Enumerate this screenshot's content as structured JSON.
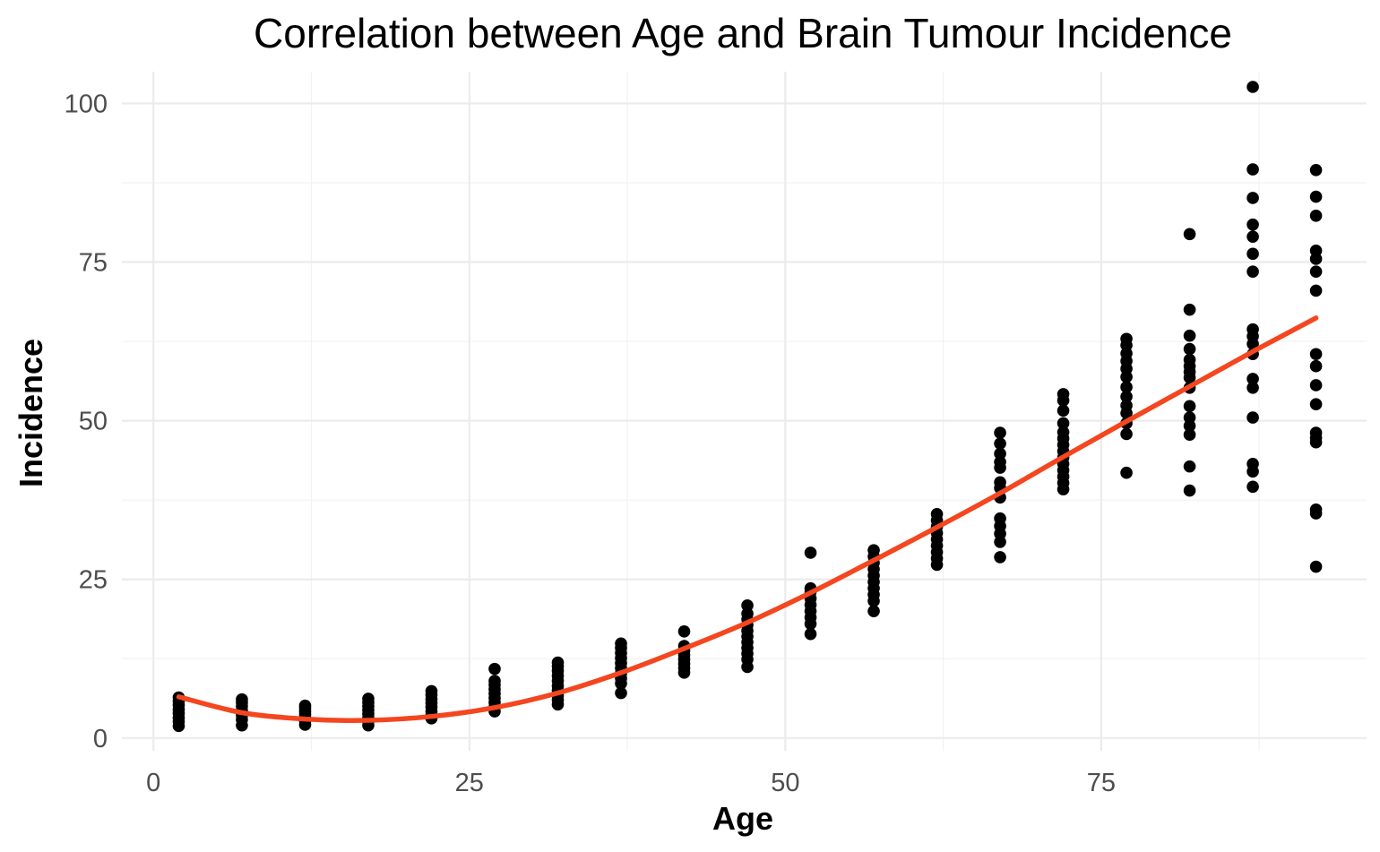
{
  "chart_data": {
    "type": "scatter",
    "title": "Correlation between Age and Brain Tumour Incidence",
    "xlabel": "Age",
    "ylabel": "Incidence",
    "xlim": [
      -2.5,
      96
    ],
    "ylim": [
      -2,
      105
    ],
    "x_ticks": [
      0,
      25,
      50,
      75
    ],
    "y_ticks": [
      0,
      25,
      50,
      75,
      100
    ],
    "grid": true,
    "legend": "none",
    "colors": {
      "points": "#000000",
      "trend": "#f4461f"
    },
    "points": [
      {
        "x": 2,
        "y": [
          1.9,
          2.6,
          3.2,
          3.9,
          4.5,
          5.2,
          5.8,
          6.4
        ]
      },
      {
        "x": 7,
        "y": [
          2.0,
          2.9,
          3.6,
          4.3,
          5.0,
          5.6,
          6.1
        ]
      },
      {
        "x": 12,
        "y": [
          2.1,
          2.7,
          3.2,
          3.7,
          4.2,
          4.7,
          5.1
        ]
      },
      {
        "x": 17,
        "y": [
          2.0,
          2.6,
          3.2,
          3.8,
          4.4,
          5.0,
          5.6,
          6.2
        ]
      },
      {
        "x": 22,
        "y": [
          3.1,
          3.6,
          4.2,
          4.9,
          5.5,
          6.1,
          6.8,
          7.4
        ]
      },
      {
        "x": 27,
        "y": [
          4.2,
          4.9,
          5.6,
          6.3,
          7.0,
          7.7,
          8.4,
          9.0,
          10.9
        ]
      },
      {
        "x": 32,
        "y": [
          5.3,
          6.0,
          6.7,
          7.5,
          8.2,
          9.0,
          9.8,
          10.6,
          11.3,
          11.9
        ]
      },
      {
        "x": 37,
        "y": [
          7.1,
          8.6,
          9.4,
          10.2,
          11.0,
          11.8,
          12.6,
          13.4,
          14.2,
          14.9
        ]
      },
      {
        "x": 42,
        "y": [
          10.3,
          11.0,
          11.7,
          12.4,
          13.1,
          13.8,
          14.5,
          16.8
        ]
      },
      {
        "x": 47,
        "y": [
          11.2,
          12.4,
          13.3,
          14.2,
          15.1,
          16.0,
          16.9,
          17.8,
          18.7,
          19.6,
          20.9
        ]
      },
      {
        "x": 52,
        "y": [
          16.4,
          18.0,
          19.0,
          20.0,
          21.0,
          22.0,
          23.0,
          23.6,
          29.2
        ]
      },
      {
        "x": 57,
        "y": [
          20.0,
          21.6,
          22.6,
          23.6,
          24.6,
          25.6,
          26.6,
          27.6,
          28.6,
          29.6
        ]
      },
      {
        "x": 62,
        "y": [
          27.3,
          28.3,
          29.3,
          30.3,
          31.3,
          32.3,
          33.3,
          34.3,
          35.3
        ]
      },
      {
        "x": 67,
        "y": [
          28.5,
          30.9,
          32.2,
          33.4,
          34.6,
          37.9,
          39.4,
          40.3,
          42.6,
          43.5,
          44.8,
          46.4,
          48.1
        ]
      },
      {
        "x": 72,
        "y": [
          39.2,
          40.2,
          41.2,
          42.2,
          43.2,
          44.2,
          45.2,
          46.2,
          47.2,
          48.2,
          49.6,
          51.6,
          53.2,
          54.2
        ]
      },
      {
        "x": 77,
        "y": [
          41.8,
          47.9,
          49.6,
          51.2,
          52.4,
          53.8,
          55.3,
          56.9,
          58.2,
          59.4,
          60.6,
          61.9,
          62.9
        ]
      },
      {
        "x": 82,
        "y": [
          39.0,
          42.8,
          47.8,
          49.2,
          50.5,
          52.3,
          55.2,
          56.8,
          57.7,
          58.6,
          59.6,
          61.3,
          63.4,
          67.5,
          79.4
        ]
      },
      {
        "x": 87,
        "y": [
          39.6,
          42.0,
          43.2,
          50.5,
          55.2,
          56.6,
          60.5,
          62.1,
          63.3,
          64.4,
          73.5,
          76.3,
          79.0,
          80.9,
          85.1,
          89.6,
          102.6
        ]
      },
      {
        "x": 92,
        "y": [
          27.0,
          35.4,
          36.0,
          46.6,
          47.3,
          48.1,
          52.6,
          55.6,
          58.6,
          60.5,
          70.5,
          73.5,
          75.5,
          76.8,
          82.3,
          85.3,
          89.5
        ]
      }
    ],
    "trend": {
      "type": "smooth",
      "x": [
        2,
        7,
        12,
        17,
        22,
        27,
        32,
        37,
        42,
        47,
        52,
        57,
        62,
        67,
        72,
        77,
        82,
        87,
        92
      ],
      "y": [
        6.5,
        4.0,
        3.0,
        2.8,
        3.4,
        4.8,
        7.1,
        10.3,
        14.1,
        18.2,
        22.9,
        28.0,
        33.2,
        38.6,
        44.3,
        49.9,
        55.4,
        60.9,
        66.2
      ]
    }
  }
}
